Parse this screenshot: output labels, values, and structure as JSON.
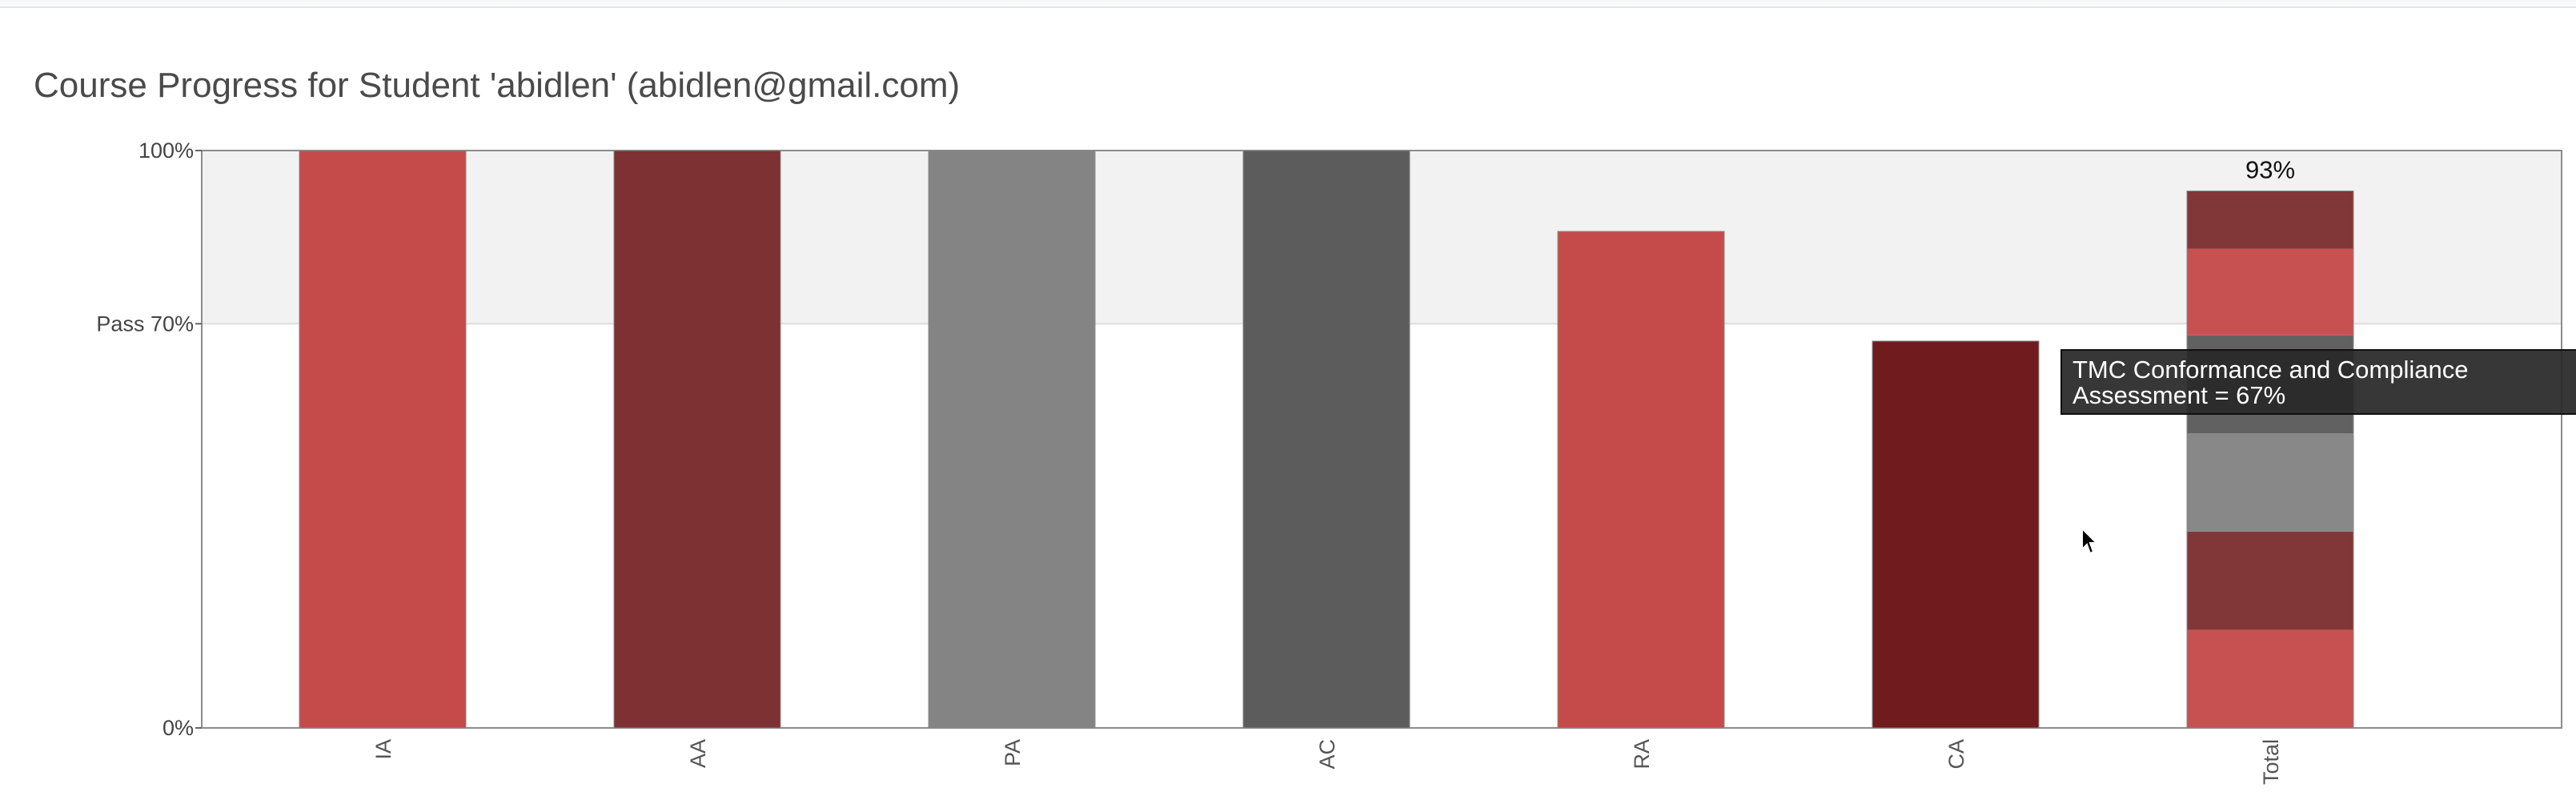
{
  "page": {
    "title": "Course Progress for Student 'abidlen' (abidlen@gmail.com)"
  },
  "tooltip": {
    "text": "TMC Conformance and Compliance\nAssessment = 67%"
  },
  "colors": {
    "red": "#c54b4b",
    "dark_red": "#7d3132",
    "gray": "#848484",
    "dark_gray": "#5c5c5c",
    "deep_red": "#701b1e",
    "pass_band": "#f2f2f2",
    "axis": "#666666"
  },
  "chart_data": {
    "type": "bar",
    "categories": [
      "IA",
      "AA",
      "PA",
      "AC",
      "RA",
      "CA",
      "Total"
    ],
    "values": [
      100,
      100,
      100,
      100,
      86,
      67,
      93
    ],
    "bar_colors": [
      "#c54b4b",
      "#7d3132",
      "#848484",
      "#5c5c5c",
      "#c54b4b",
      "#701b1e",
      null
    ],
    "total": {
      "label": "93%",
      "segments": [
        {
          "value": 17,
          "color": "#c54b4b"
        },
        {
          "value": 17,
          "color": "#7d3132"
        },
        {
          "value": 17,
          "color": "#848484"
        },
        {
          "value": 17,
          "color": "#5c5c5c"
        },
        {
          "value": 15,
          "color": "#c54b4b"
        },
        {
          "value": 10,
          "color": "#7d3132"
        }
      ]
    },
    "ylim": [
      0,
      100
    ],
    "yticks": [
      {
        "value": 0,
        "label": "0%"
      },
      {
        "value": 70,
        "label": "Pass 70%"
      },
      {
        "value": 100,
        "label": "100%"
      }
    ],
    "pass_threshold": 70,
    "xlabel": "",
    "ylabel": ""
  }
}
